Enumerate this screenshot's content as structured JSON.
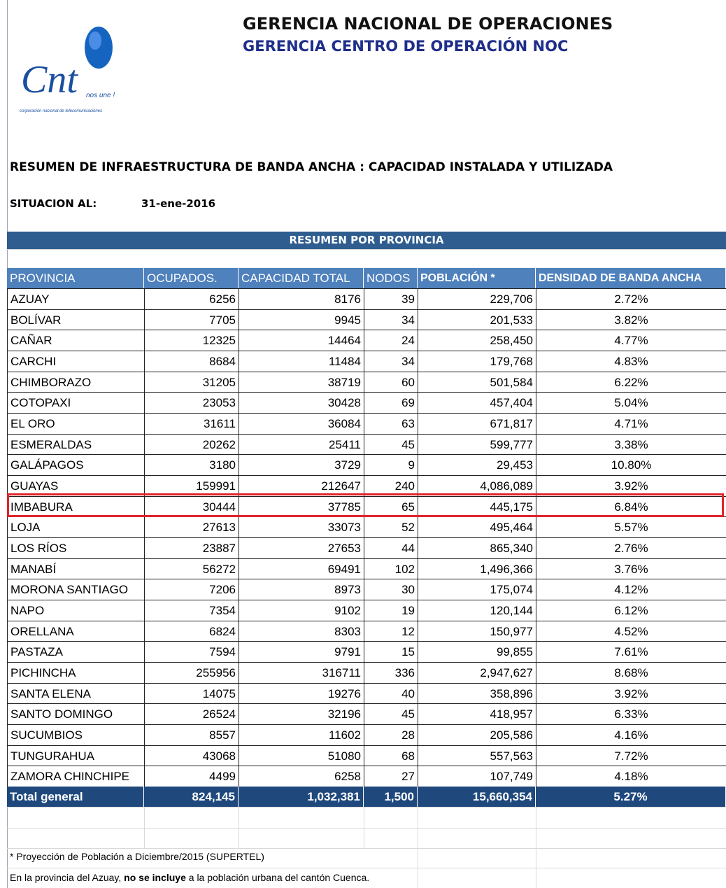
{
  "header": {
    "title": "GERENCIA NACIONAL DE OPERACIONES",
    "subtitle": "GERENCIA CENTRO DE OPERACIÓN NOC",
    "logo": {
      "brand": "Cnt",
      "slogan": "nos une !",
      "tagline": "corporación nacional de telecomunicaciones"
    }
  },
  "report": {
    "title": "RESUMEN DE INFRAESTRUCTURA DE BANDA ANCHA : CAPACIDAD INSTALADA Y UTILIZADA",
    "date_label": "SITUACION AL:",
    "date": "31-ene-2016",
    "section": "RESUMEN POR PROVINCIA"
  },
  "table": {
    "columns": [
      "PROVINCIA",
      "OCUPADOS.",
      "CAPACIDAD TOTAL",
      "NODOS",
      "POBLACIÓN *",
      "DENSIDAD DE BANDA ANCHA"
    ],
    "rows": [
      [
        "AZUAY",
        "6256",
        "8176",
        "39",
        "229,706",
        "2.72%"
      ],
      [
        "BOLÍVAR",
        "7705",
        "9945",
        "34",
        "201,533",
        "3.82%"
      ],
      [
        "CAÑAR",
        "12325",
        "14464",
        "24",
        "258,450",
        "4.77%"
      ],
      [
        "CARCHI",
        "8684",
        "11484",
        "34",
        "179,768",
        "4.83%"
      ],
      [
        "CHIMBORAZO",
        "31205",
        "38719",
        "60",
        "501,584",
        "6.22%"
      ],
      [
        "COTOPAXI",
        "23053",
        "30428",
        "69",
        "457,404",
        "5.04%"
      ],
      [
        "EL ORO",
        "31611",
        "36084",
        "63",
        "671,817",
        "4.71%"
      ],
      [
        "ESMERALDAS",
        "20262",
        "25411",
        "45",
        "599,777",
        "3.38%"
      ],
      [
        "GALÁPAGOS",
        "3180",
        "3729",
        "9",
        "29,453",
        "10.80%"
      ],
      [
        "GUAYAS",
        "159991",
        "212647",
        "240",
        "4,086,089",
        "3.92%"
      ],
      [
        "IMBABURA",
        "30444",
        "37785",
        "65",
        "445,175",
        "6.84%"
      ],
      [
        "LOJA",
        "27613",
        "33073",
        "52",
        "495,464",
        "5.57%"
      ],
      [
        "LOS RÍOS",
        "23887",
        "27653",
        "44",
        "865,340",
        "2.76%"
      ],
      [
        "MANABÍ",
        "56272",
        "69491",
        "102",
        "1,496,366",
        "3.76%"
      ],
      [
        "MORONA SANTIAGO",
        "7206",
        "8973",
        "30",
        "175,074",
        "4.12%"
      ],
      [
        "NAPO",
        "7354",
        "9102",
        "19",
        "120,144",
        "6.12%"
      ],
      [
        "ORELLANA",
        "6824",
        "8303",
        "12",
        "150,977",
        "4.52%"
      ],
      [
        "PASTAZA",
        "7594",
        "9791",
        "15",
        "99,855",
        "7.61%"
      ],
      [
        "PICHINCHA",
        "255956",
        "316711",
        "336",
        "2,947,627",
        "8.68%"
      ],
      [
        "SANTA ELENA",
        "14075",
        "19276",
        "40",
        "358,896",
        "3.92%"
      ],
      [
        "SANTO DOMINGO",
        "26524",
        "32196",
        "45",
        "418,957",
        "6.33%"
      ],
      [
        "SUCUMBIOS",
        "8557",
        "11602",
        "28",
        "205,586",
        "4.16%"
      ],
      [
        "TUNGURAHUA",
        "43068",
        "51080",
        "68",
        "557,563",
        "7.72%"
      ],
      [
        "ZAMORA CHINCHIPE",
        "4499",
        "6258",
        "27",
        "107,749",
        "4.18%"
      ]
    ],
    "total": [
      "Total general",
      "824,145",
      "1,032,381",
      "1,500",
      "15,660,354",
      "5.27%"
    ]
  },
  "notes": {
    "note1": "* Proyección de Población a Diciembre/2015 (SUPERTEL)",
    "note2": [
      "En la provincia del Azuay, ",
      "no se incluye",
      " a la población urbana del cantón Cuenca."
    ]
  }
}
